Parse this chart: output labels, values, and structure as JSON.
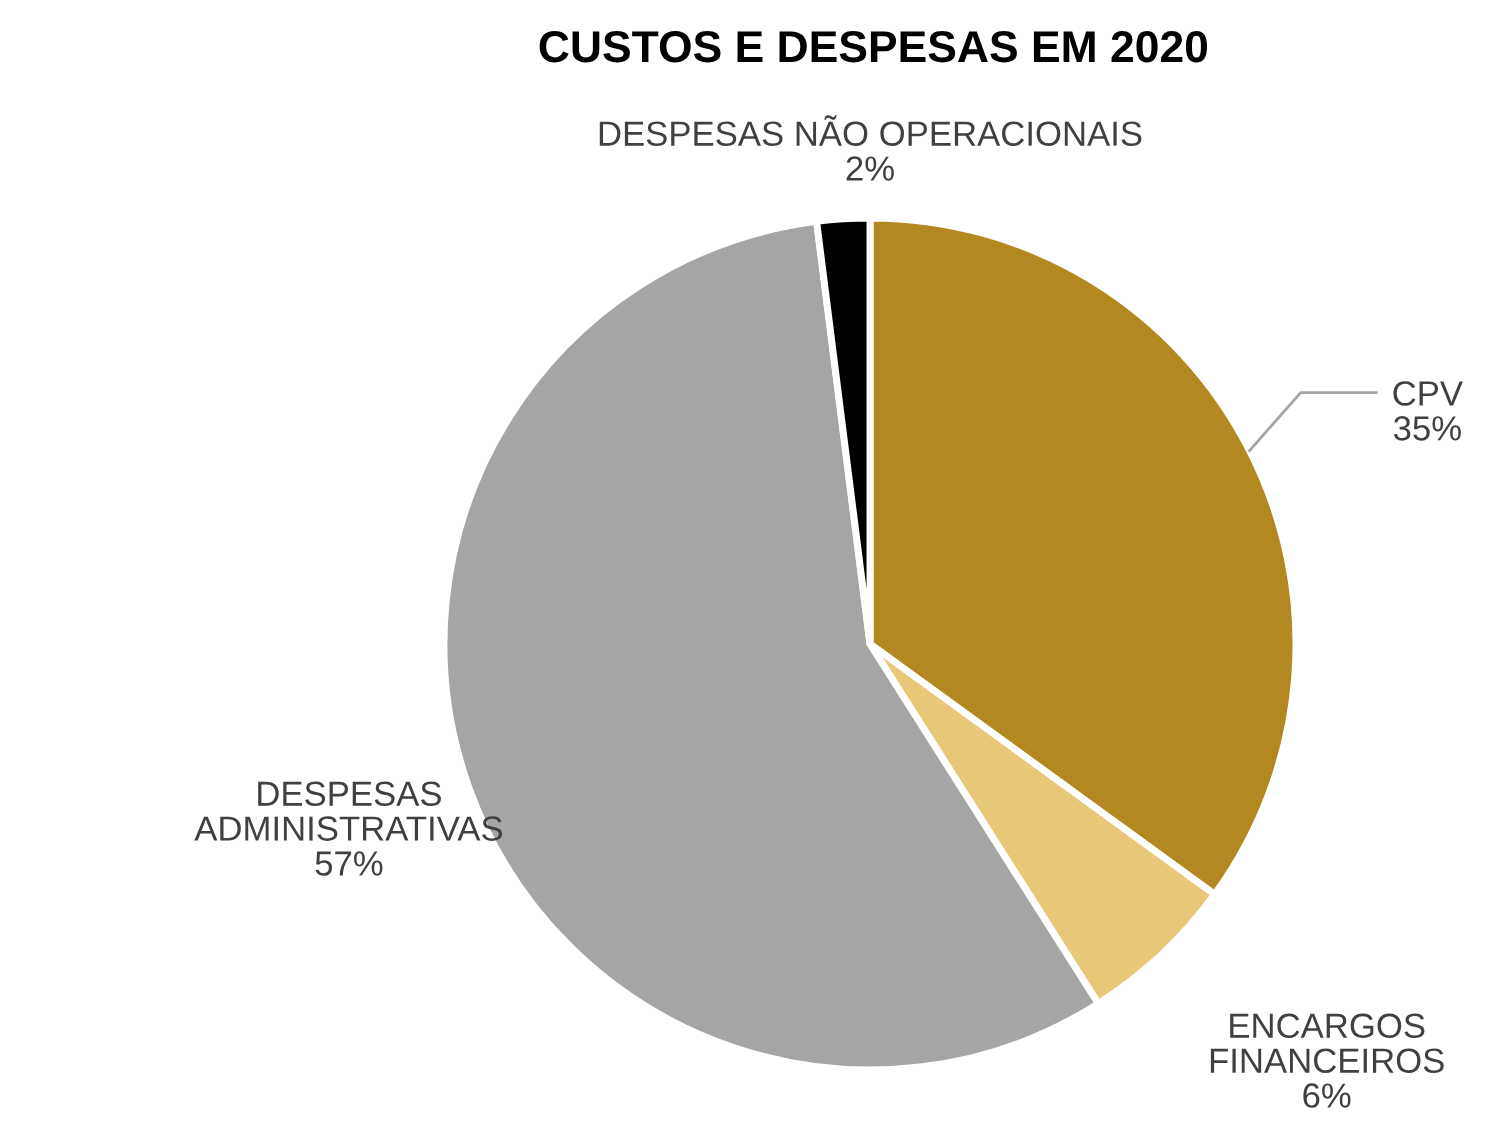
{
  "chart_data": {
    "type": "pie",
    "title": "CUSTOS E DESPESAS EM 2020",
    "categories": [
      "CPV",
      "ENCARGOS FINANCEIROS",
      "DESPESAS ADMINISTRATIVAS",
      "DESPESAS NÃO OPERACIONAIS"
    ],
    "values": [
      35,
      6,
      57,
      2
    ],
    "colors": [
      "#b38820",
      "#e8c779",
      "#a5a5a5",
      "#000000"
    ],
    "value_labels": [
      "35%",
      "6%",
      "57%",
      "2%"
    ],
    "legend": false
  }
}
